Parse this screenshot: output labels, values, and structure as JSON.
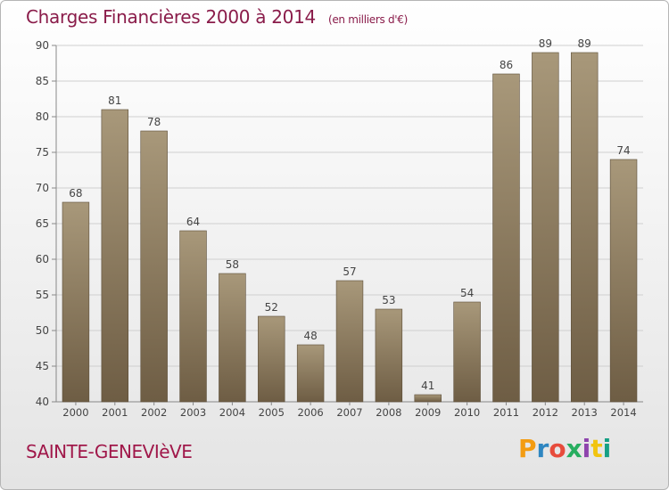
{
  "chart_data": {
    "type": "bar",
    "title": "Charges Financières 2000 à 2014",
    "subtitle": "(en milliers d'€)",
    "categories": [
      "2000",
      "2001",
      "2002",
      "2003",
      "2004",
      "2005",
      "2006",
      "2007",
      "2008",
      "2009",
      "2010",
      "2011",
      "2012",
      "2013",
      "2014"
    ],
    "values": [
      68,
      81,
      78,
      64,
      58,
      52,
      48,
      57,
      53,
      41,
      54,
      86,
      89,
      89,
      74
    ],
    "ylim": [
      40,
      90
    ],
    "yticks": [
      40,
      45,
      50,
      55,
      60,
      65,
      70,
      75,
      80,
      85,
      90
    ],
    "grid": true,
    "bar_color_top": "#a8987a",
    "bar_color_bottom": "#6e5d44"
  },
  "footer": {
    "commune": "SAINTE-GENEVIèVE",
    "logo_text": "Proxiti",
    "logo_colors": [
      "#f39c12",
      "#2e86c1",
      "#e74c3c",
      "#27ae60",
      "#8e44ad",
      "#f1c40f",
      "#16a085"
    ]
  }
}
